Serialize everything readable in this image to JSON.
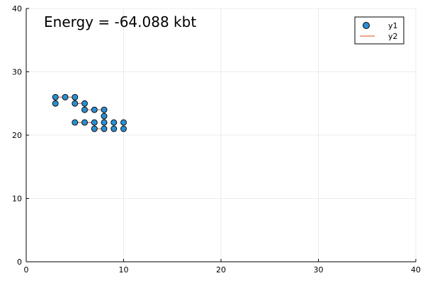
{
  "chart_data": {
    "type": "scatter",
    "annotation": "Energy = -64.088 kbt",
    "xlim": [
      0,
      40
    ],
    "ylim": [
      0,
      40
    ],
    "x_ticks": [
      0,
      10,
      20,
      30,
      40
    ],
    "y_ticks": [
      0,
      10,
      20,
      30,
      40
    ],
    "grid": true,
    "legend_placement": "top-right",
    "series": [
      {
        "name": "y1",
        "kind": "scatter",
        "color": "#2a8fd1",
        "points": [
          [
            3,
            25
          ],
          [
            3,
            26
          ],
          [
            4,
            26
          ],
          [
            5,
            26
          ],
          [
            5,
            25
          ],
          [
            6,
            25
          ],
          [
            6,
            24
          ],
          [
            7,
            24
          ],
          [
            8,
            24
          ],
          [
            8,
            23
          ],
          [
            8,
            22
          ],
          [
            8,
            21
          ],
          [
            7,
            21
          ],
          [
            7,
            22
          ],
          [
            6,
            22
          ],
          [
            5,
            22
          ],
          [
            9,
            22
          ],
          [
            10,
            22
          ],
          [
            10,
            21
          ],
          [
            9,
            21
          ]
        ]
      },
      {
        "name": "y2",
        "kind": "line",
        "color": "#e26f46",
        "points": [
          [
            3,
            25
          ],
          [
            3,
            26
          ],
          [
            4,
            26
          ],
          [
            5,
            26
          ],
          [
            5,
            25
          ],
          [
            6,
            25
          ],
          [
            6,
            24
          ],
          [
            7,
            24
          ],
          [
            8,
            24
          ],
          [
            8,
            23
          ],
          [
            8,
            22
          ],
          [
            8,
            21
          ],
          [
            7,
            21
          ],
          [
            7,
            22
          ],
          [
            6,
            22
          ],
          [
            5,
            22
          ]
        ]
      }
    ]
  }
}
